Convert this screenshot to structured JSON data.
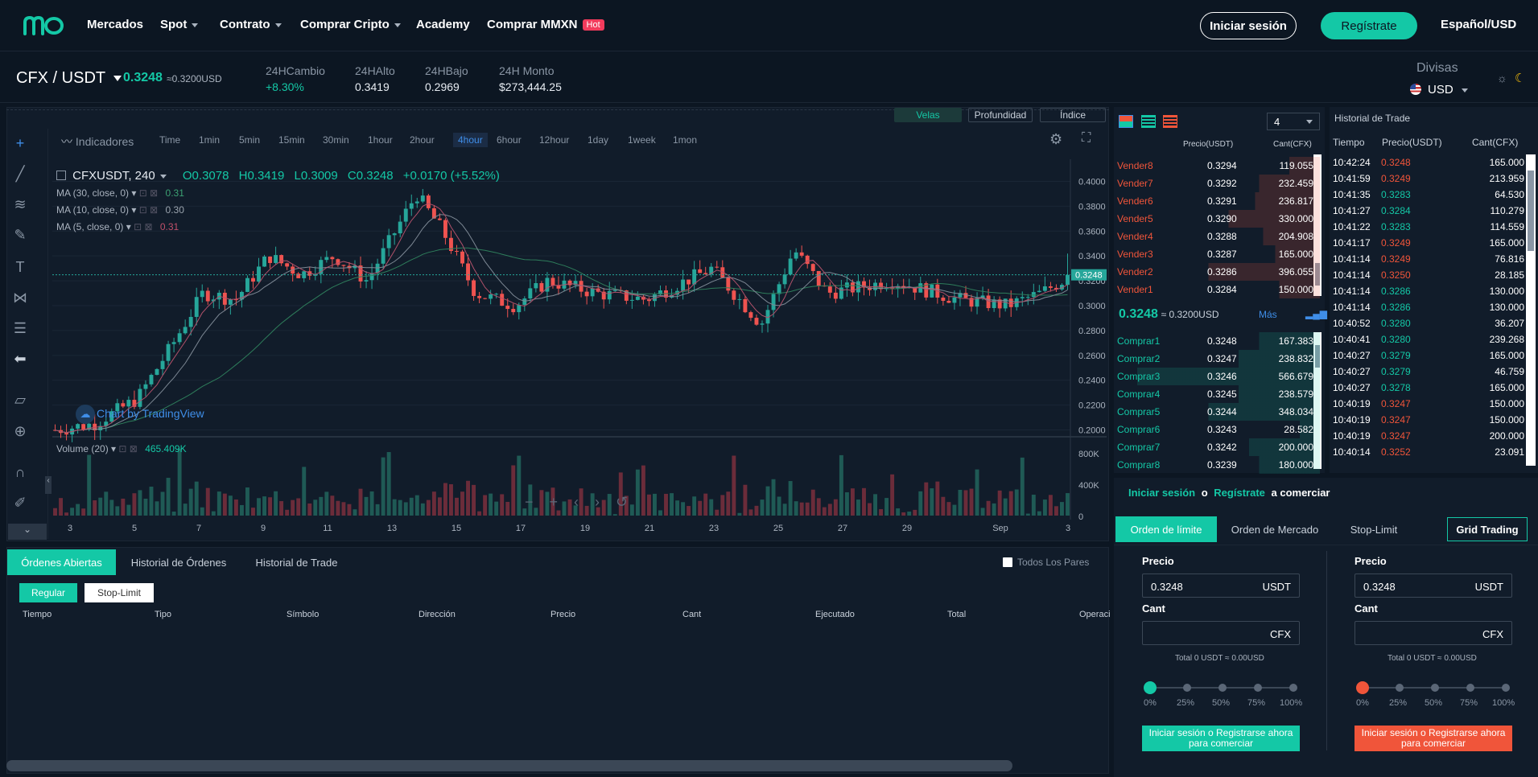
{
  "brand": {
    "logo": "mxo"
  },
  "nav": {
    "mercados": "Mercados",
    "spot": "Spot",
    "contrato": "Contrato",
    "comprar_cripto": "Comprar Cripto",
    "academy": "Academy",
    "comprar_mmxn": "Comprar MMXN",
    "hot": "Hot",
    "login": "Iniciar sesión",
    "register": "Regístrate",
    "language": "Español/USD"
  },
  "ticker": {
    "pair": "CFX / USDT",
    "last": "0.3248",
    "last_fiat": "≈0.3200USD",
    "stats": [
      {
        "k": "24HCambio",
        "v": "+8.30%"
      },
      {
        "k": "24HAlto",
        "v": "0.3419"
      },
      {
        "k": "24HBajo",
        "v": "0.2969"
      },
      {
        "k": "24H Monto",
        "v": "$273,444.25"
      }
    ],
    "divisas": "Divisas",
    "currency": "USD"
  },
  "chart_tabs": {
    "velas": "Velas",
    "profundidad": "Profundidad",
    "indice": "Índice"
  },
  "toolbar": {
    "indicadores": "Indicadores",
    "timeframes": [
      "Time",
      "1min",
      "5min",
      "15min",
      "30min",
      "1hour",
      "2hour",
      "4hour",
      "6hour",
      "12hour",
      "1day",
      "1week",
      "1mon"
    ],
    "active": "4hour"
  },
  "legend": {
    "symbol": "CFXUSDT, 240",
    "o": "O0.3078",
    "h": "H0.3419",
    "l": "L0.3009",
    "c": "C0.3248",
    "chg": "+0.0170 (+5.52%)",
    "ma30": "MA (30, close, 0)",
    "ma30v": "0.31",
    "ma10": "MA (10, close, 0)",
    "ma10v": "0.30",
    "ma5": "MA (5, close, 0)",
    "ma5v": "0.31",
    "volume": "Volume (20)",
    "volumev": "465.409K",
    "tv": "Chart by TradingView"
  },
  "chart_data": {
    "type": "candlestick",
    "title": "CFXUSDT, 240",
    "ylim": [
      0.19,
      0.41
    ],
    "yticks": [
      "0.4000",
      "0.3800",
      "0.3600",
      "0.3400",
      "0.3200",
      "0.3000",
      "0.2800",
      "0.2600",
      "0.2400",
      "0.2200",
      "0.2000"
    ],
    "last_price": "0.3248",
    "xticks": [
      "3",
      "5",
      "7",
      "9",
      "11",
      "13",
      "15",
      "17",
      "19",
      "21",
      "23",
      "25",
      "27",
      "29",
      "Sep",
      "3"
    ],
    "volume_ticks": [
      "800K",
      "400K",
      "0"
    ]
  },
  "orders": {
    "tabs": [
      "Órdenes Abiertas",
      "Historial de Órdenes",
      "Historial de Trade"
    ],
    "todos": "Todos Los Pares",
    "subtabs": [
      "Regular",
      "Stop-Limit"
    ],
    "headers": [
      "Tiempo",
      "Tipo",
      "Símbolo",
      "Dirección",
      "Precio",
      "Cant",
      "Ejecutado",
      "Total",
      "Operaci"
    ]
  },
  "orderbook": {
    "precision": "4",
    "hdr_price": "Precio(USDT)",
    "hdr_qty": "Cant(CFX)",
    "sells": [
      {
        "l": "Vender8",
        "p": "0.3294",
        "q": "119.055"
      },
      {
        "l": "Vender7",
        "p": "0.3292",
        "q": "232.459"
      },
      {
        "l": "Vender6",
        "p": "0.3291",
        "q": "236.817"
      },
      {
        "l": "Vender5",
        "p": "0.3290",
        "q": "330.000"
      },
      {
        "l": "Vender4",
        "p": "0.3288",
        "q": "204.908"
      },
      {
        "l": "Vender3",
        "p": "0.3287",
        "q": "165.000"
      },
      {
        "l": "Vender2",
        "p": "0.3286",
        "q": "396.055"
      },
      {
        "l": "Vender1",
        "p": "0.3284",
        "q": "150.000"
      }
    ],
    "mid_price": "0.3248",
    "mid_fiat": "≈ 0.3200USD",
    "mas": "Más",
    "buys": [
      {
        "l": "Comprar1",
        "p": "0.3248",
        "q": "167.383"
      },
      {
        "l": "Comprar2",
        "p": "0.3247",
        "q": "238.832"
      },
      {
        "l": "Comprar3",
        "p": "0.3246",
        "q": "566.679"
      },
      {
        "l": "Comprar4",
        "p": "0.3245",
        "q": "238.579"
      },
      {
        "l": "Comprar5",
        "p": "0.3244",
        "q": "348.034"
      },
      {
        "l": "Comprar6",
        "p": "0.3243",
        "q": "28.582"
      },
      {
        "l": "Comprar7",
        "p": "0.3242",
        "q": "200.000"
      },
      {
        "l": "Comprar8",
        "p": "0.3239",
        "q": "180.000"
      }
    ]
  },
  "trades": {
    "title": "Historial de Trade",
    "hdr": [
      "Tiempo",
      "Precio(USDT)",
      "Cant(CFX)"
    ],
    "rows": [
      {
        "t": "10:42:24",
        "p": "0.3248",
        "q": "165.000",
        "s": "sell"
      },
      {
        "t": "10:41:59",
        "p": "0.3249",
        "q": "213.959",
        "s": "sell"
      },
      {
        "t": "10:41:35",
        "p": "0.3283",
        "q": "64.530",
        "s": "buy"
      },
      {
        "t": "10:41:27",
        "p": "0.3284",
        "q": "110.279",
        "s": "buy"
      },
      {
        "t": "10:41:22",
        "p": "0.3283",
        "q": "114.559",
        "s": "buy"
      },
      {
        "t": "10:41:17",
        "p": "0.3249",
        "q": "165.000",
        "s": "sell"
      },
      {
        "t": "10:41:14",
        "p": "0.3249",
        "q": "76.816",
        "s": "sell"
      },
      {
        "t": "10:41:14",
        "p": "0.3250",
        "q": "28.185",
        "s": "sell"
      },
      {
        "t": "10:41:14",
        "p": "0.3286",
        "q": "130.000",
        "s": "buy"
      },
      {
        "t": "10:41:14",
        "p": "0.3286",
        "q": "130.000",
        "s": "buy"
      },
      {
        "t": "10:40:52",
        "p": "0.3280",
        "q": "36.207",
        "s": "buy"
      },
      {
        "t": "10:40:41",
        "p": "0.3280",
        "q": "239.268",
        "s": "buy"
      },
      {
        "t": "10:40:27",
        "p": "0.3279",
        "q": "165.000",
        "s": "buy"
      },
      {
        "t": "10:40:27",
        "p": "0.3279",
        "q": "46.759",
        "s": "buy"
      },
      {
        "t": "10:40:27",
        "p": "0.3278",
        "q": "165.000",
        "s": "buy"
      },
      {
        "t": "10:40:19",
        "p": "0.3247",
        "q": "150.000",
        "s": "sell"
      },
      {
        "t": "10:40:19",
        "p": "0.3247",
        "q": "150.000",
        "s": "sell"
      },
      {
        "t": "10:40:19",
        "p": "0.3247",
        "q": "200.000",
        "s": "sell"
      },
      {
        "t": "10:40:14",
        "p": "0.3252",
        "q": "23.091",
        "s": "sell"
      }
    ]
  },
  "form": {
    "login_prompt": {
      "a": "Iniciar sesión",
      "o": "o",
      "b": "Regístrate",
      "c": "a comerciar"
    },
    "tabs": [
      "Orden de límite",
      "Orden de Mercado",
      "Stop-Limit",
      "Grid Trading"
    ],
    "precio": "Precio",
    "cant": "Cant",
    "price_val": "0.3248",
    "usdt": "USDT",
    "cfx": "CFX",
    "total": "Total  0 USDT ≈ 0.00USD",
    "pcts": [
      "0%",
      "25%",
      "50%",
      "75%",
      "100%"
    ],
    "buy_btn": "Iniciar sesión o Registrarse ahora para comerciar",
    "sell_btn": "Iniciar sesión o Registrarse ahora para comerciar"
  },
  "colors": {
    "up": "#14c8a6",
    "down": "#f0553a",
    "accent": "#14c8a6"
  }
}
